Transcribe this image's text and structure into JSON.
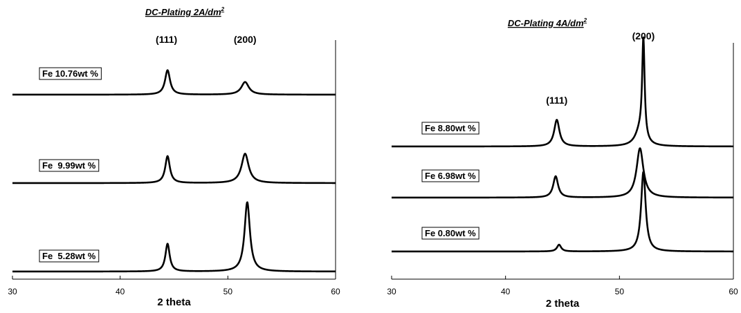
{
  "chart_data": [
    {
      "type": "line",
      "title": "DC-Plating 2A/dm",
      "title_superscript": "2",
      "xlabel": "2 theta",
      "ylabel": "",
      "xlim": [
        30,
        60
      ],
      "xticks": [
        "30",
        "40",
        "50",
        "60"
      ],
      "y_axis_visible": false,
      "grid": false,
      "peak_labels": [
        {
          "text": "(111)",
          "x": 44.3
        },
        {
          "text": "(200)",
          "x": 51.6
        }
      ],
      "series": [
        {
          "name": "Fe 10.76wt %",
          "offset": 2,
          "peaks": [
            {
              "x": 44.4,
              "height": 0.6,
              "width": 0.28
            },
            {
              "x": 51.6,
              "height": 0.31,
              "width": 0.42
            }
          ]
        },
        {
          "name": "Fe  9.99wt %",
          "offset": 1,
          "peaks": [
            {
              "x": 44.4,
              "height": 0.66,
              "width": 0.26
            },
            {
              "x": 51.6,
              "height": 0.72,
              "width": 0.4
            }
          ]
        },
        {
          "name": "Fe  5.28wt %",
          "offset": 0,
          "peaks": [
            {
              "x": 44.4,
              "height": 0.68,
              "width": 0.24
            },
            {
              "x": 51.8,
              "height": 1.7,
              "width": 0.3
            }
          ]
        }
      ]
    },
    {
      "type": "line",
      "title": "DC-Plating 4A/dm",
      "title_superscript": "2",
      "xlabel": "2 theta",
      "ylabel": "",
      "xlim": [
        30,
        60
      ],
      "xticks": [
        "30",
        "40",
        "50",
        "60"
      ],
      "y_axis_visible": false,
      "grid": false,
      "peak_labels": [
        {
          "text": "(111)",
          "x": 44.5
        },
        {
          "text": "(200)",
          "x": 52.1
        }
      ],
      "series": [
        {
          "name": "Fe 8.80wt %",
          "offset": 2,
          "peaks": [
            {
              "x": 44.5,
              "height": 0.55,
              "width": 0.28
            },
            {
              "x": 51.8,
              "height": 0.3,
              "width": 0.5
            },
            {
              "x": 52.1,
              "height": 2.05,
              "width": 0.13
            }
          ]
        },
        {
          "name": "Fe 6.98wt %",
          "offset": 1,
          "peaks": [
            {
              "x": 44.4,
              "height": 0.44,
              "width": 0.26
            },
            {
              "x": 51.8,
              "height": 1.02,
              "width": 0.36
            }
          ]
        },
        {
          "name": "Fe 0.80wt %",
          "offset": 0,
          "peaks": [
            {
              "x": 44.7,
              "height": 0.14,
              "width": 0.22
            },
            {
              "x": 52.1,
              "height": 1.65,
              "width": 0.24
            }
          ]
        }
      ]
    }
  ]
}
